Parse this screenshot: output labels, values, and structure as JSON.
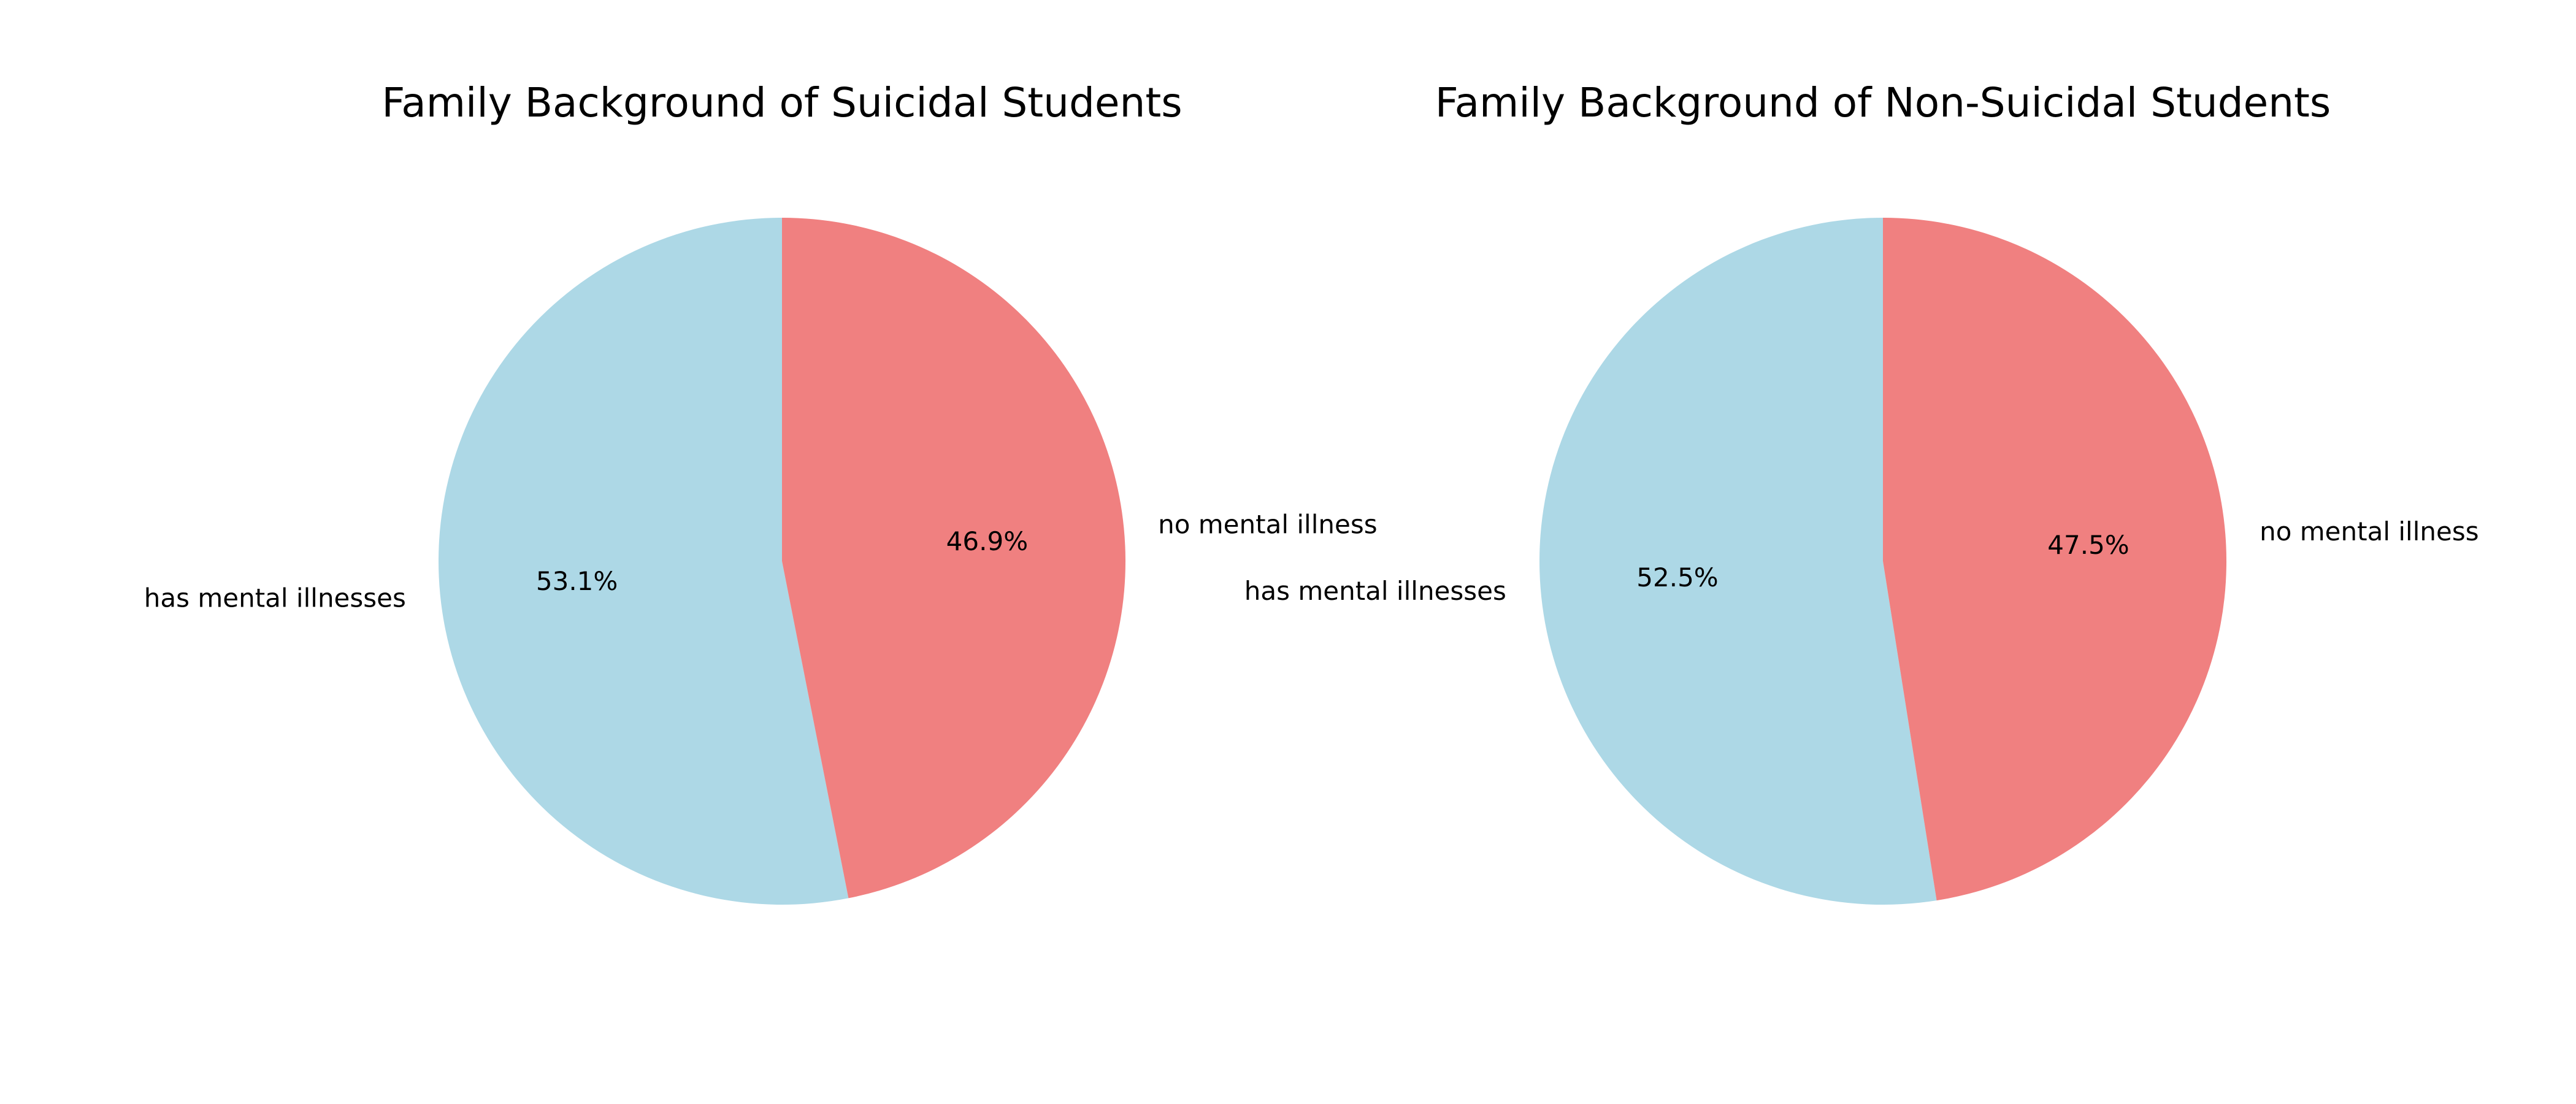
{
  "chart_data": [
    {
      "type": "pie",
      "title": "Family Background of Suicidal Students",
      "categories": [
        "has mental illnesses",
        "no mental illness"
      ],
      "values": [
        53.1,
        46.9
      ],
      "percent_labels": [
        "53.1%",
        "46.9%"
      ],
      "colors": [
        "#add8e6",
        "#f08080"
      ],
      "start_angle_deg": 90,
      "direction": "counterclockwise",
      "legend": "none"
    },
    {
      "type": "pie",
      "title": "Family Background of Non-Suicidal Students",
      "categories": [
        "has mental illnesses",
        "no mental illness"
      ],
      "values": [
        52.5,
        47.5
      ],
      "percent_labels": [
        "52.5%",
        "47.5%"
      ],
      "colors": [
        "#add8e6",
        "#f08080"
      ],
      "start_angle_deg": 90,
      "direction": "counterclockwise",
      "legend": "none"
    }
  ]
}
